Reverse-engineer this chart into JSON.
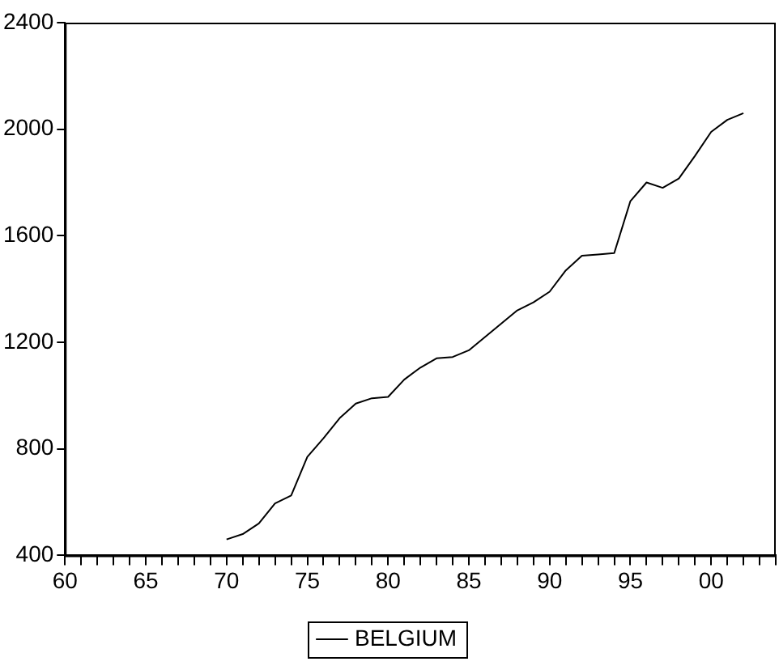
{
  "chart_data": {
    "type": "line",
    "x": [
      1970,
      1971,
      1972,
      1973,
      1974,
      1975,
      1976,
      1977,
      1978,
      1979,
      1980,
      1981,
      1982,
      1983,
      1984,
      1985,
      1986,
      1987,
      1988,
      1989,
      1990,
      1991,
      1992,
      1993,
      1994,
      1995,
      1996,
      1997,
      1998,
      1999,
      2000,
      2001,
      2002
    ],
    "series": [
      {
        "name": "BELGIUM",
        "color": "#000000",
        "values": [
          460,
          480,
          520,
          595,
          625,
          770,
          840,
          915,
          970,
          990,
          995,
          1060,
          1105,
          1140,
          1145,
          1170,
          1220,
          1270,
          1320,
          1350,
          1390,
          1470,
          1525,
          1530,
          1535,
          1730,
          1800,
          1780,
          1815,
          1900,
          1990,
          2035,
          2060
        ]
      }
    ],
    "xlim": [
      1960,
      2004
    ],
    "xticks": [
      {
        "value": 1960,
        "label": "60"
      },
      {
        "value": 1961,
        "label": null
      },
      {
        "value": 1962,
        "label": null
      },
      {
        "value": 1963,
        "label": null
      },
      {
        "value": 1964,
        "label": null
      },
      {
        "value": 1965,
        "label": "65"
      },
      {
        "value": 1966,
        "label": null
      },
      {
        "value": 1967,
        "label": null
      },
      {
        "value": 1968,
        "label": null
      },
      {
        "value": 1969,
        "label": null
      },
      {
        "value": 1970,
        "label": "70"
      },
      {
        "value": 1971,
        "label": null
      },
      {
        "value": 1972,
        "label": null
      },
      {
        "value": 1973,
        "label": null
      },
      {
        "value": 1974,
        "label": null
      },
      {
        "value": 1975,
        "label": "75"
      },
      {
        "value": 1976,
        "label": null
      },
      {
        "value": 1977,
        "label": null
      },
      {
        "value": 1978,
        "label": null
      },
      {
        "value": 1979,
        "label": null
      },
      {
        "value": 1980,
        "label": "80"
      },
      {
        "value": 1981,
        "label": null
      },
      {
        "value": 1982,
        "label": null
      },
      {
        "value": 1983,
        "label": null
      },
      {
        "value": 1984,
        "label": null
      },
      {
        "value": 1985,
        "label": "85"
      },
      {
        "value": 1986,
        "label": null
      },
      {
        "value": 1987,
        "label": null
      },
      {
        "value": 1988,
        "label": null
      },
      {
        "value": 1989,
        "label": null
      },
      {
        "value": 1990,
        "label": "90"
      },
      {
        "value": 1991,
        "label": null
      },
      {
        "value": 1992,
        "label": null
      },
      {
        "value": 1993,
        "label": null
      },
      {
        "value": 1994,
        "label": null
      },
      {
        "value": 1995,
        "label": "95"
      },
      {
        "value": 1996,
        "label": null
      },
      {
        "value": 1997,
        "label": null
      },
      {
        "value": 1998,
        "label": null
      },
      {
        "value": 1999,
        "label": null
      },
      {
        "value": 2000,
        "label": "00"
      },
      {
        "value": 2001,
        "label": null
      },
      {
        "value": 2002,
        "label": null
      },
      {
        "value": 2003,
        "label": null
      },
      {
        "value": 2004,
        "label": null
      }
    ],
    "ylim": [
      400,
      2400
    ],
    "yticks": [
      400,
      800,
      1200,
      1600,
      2000,
      2400
    ],
    "grid": false,
    "legend": "bottom",
    "line_style": "solid",
    "marker": "none"
  }
}
